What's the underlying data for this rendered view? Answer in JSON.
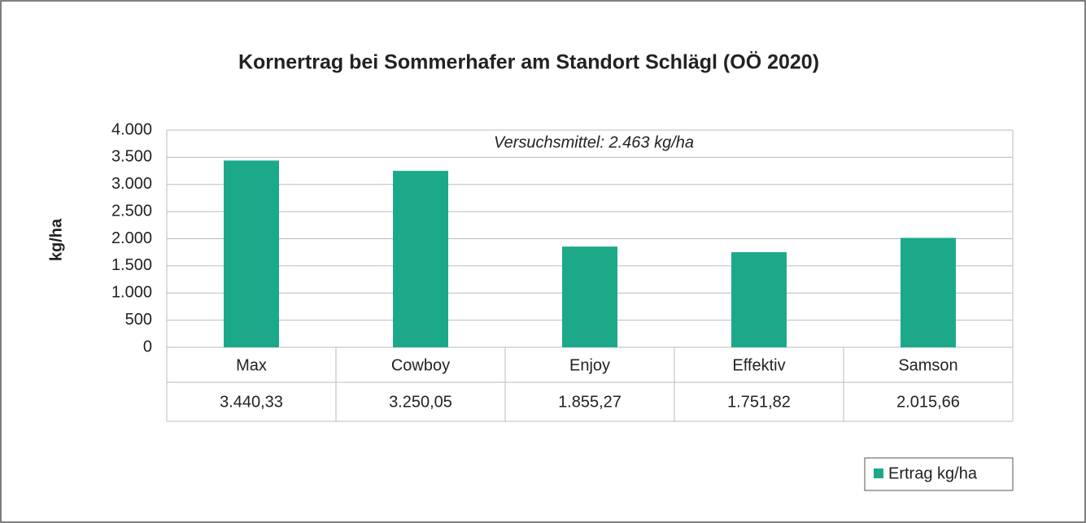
{
  "chart_data": {
    "type": "bar",
    "title": "Kornertrag bei Sommerhafer am Standort Schlägl (OÖ 2020)",
    "y_label": "kg/ha",
    "annotation": "Versuchsmittel: 2.463 kg/ha",
    "categories": [
      "Max",
      "Cowboy",
      "Enjoy",
      "Effektiv",
      "Samson"
    ],
    "series": [
      {
        "name": "Ertrag kg/ha",
        "color": "#1ca98a",
        "values": [
          3440.33,
          3250.05,
          1855.27,
          1751.82,
          2015.66
        ],
        "value_labels": [
          "3.440,33",
          "3.250,05",
          "1.855,27",
          "1.751,82",
          "2.015,66"
        ]
      }
    ],
    "ylim": [
      0,
      4000
    ],
    "yticks": [
      0,
      500,
      {
        "value": 1000,
        "label": "1.000"
      },
      {
        "value": 1500,
        "label": "1.500"
      },
      {
        "value": 2000,
        "label": "2.000"
      },
      {
        "value": 2500,
        "label": "2.500"
      },
      {
        "value": 3000,
        "label": "3.000"
      },
      {
        "value": 3500,
        "label": "3.500"
      },
      {
        "value": 4000,
        "label": "4.000"
      }
    ],
    "grid": true,
    "legend": "bottom-right"
  }
}
